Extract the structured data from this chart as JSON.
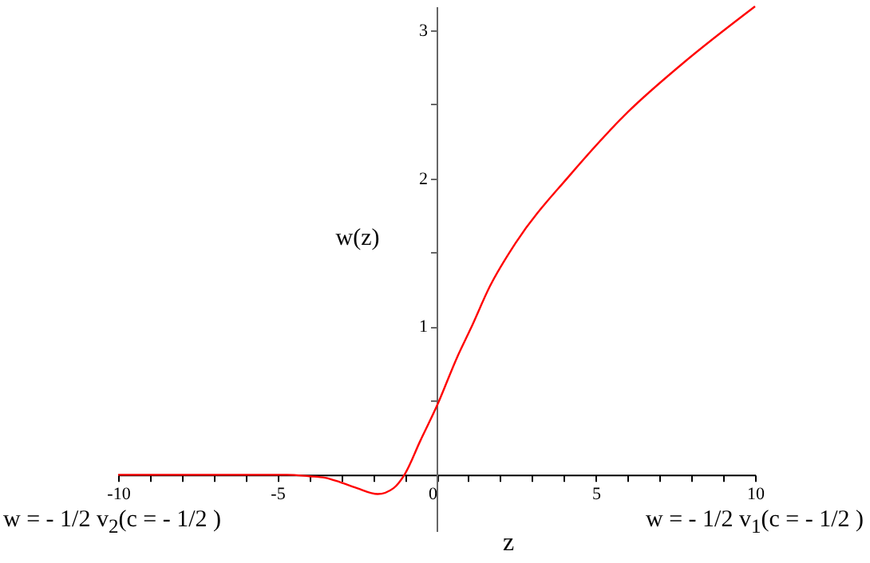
{
  "chart_data": {
    "type": "line",
    "xlabel": "z",
    "ylabel": "w(z)",
    "annotations": [
      "w = - 1/2 v$_{2}$(c = - 1/2 )",
      "w = - 1/2 v$_{1}$(c = - 1/2 )"
    ],
    "x": [
      -10,
      -8,
      -6,
      -4.7,
      -4,
      -3.5,
      -3.03,
      -2.5,
      -1.85,
      -1.35,
      -1.01,
      -0.51,
      0,
      0.66,
      1.08,
      1.67,
      2.5,
      4.18,
      6.02,
      7.7,
      10
    ],
    "series": [
      {
        "color": "#ff0000",
        "values": [
          0,
          0,
          0,
          0,
          -0.01,
          -0.02,
          -0.05,
          -0.09,
          -0.13,
          -0.09,
          0,
          0.23,
          0.46,
          0.8,
          0.99,
          1.27,
          1.57,
          2.02,
          2.45,
          2.77,
          3.16
        ]
      }
    ],
    "xlim": [
      -10,
      10
    ],
    "ylim": [
      -0.38,
      3.16
    ],
    "xticks": [
      -10,
      {
        "value": -9,
        "label": null
      },
      {
        "value": -8,
        "label": null
      },
      {
        "value": -7,
        "label": null
      },
      {
        "value": -6,
        "label": null
      },
      -5,
      {
        "value": -4,
        "label": null
      },
      {
        "value": -3,
        "label": null
      },
      {
        "value": -2,
        "label": null
      },
      {
        "value": -1,
        "label": null
      },
      0,
      {
        "value": 1,
        "label": null
      },
      {
        "value": 2,
        "label": null
      },
      {
        "value": 3,
        "label": null
      },
      {
        "value": 4,
        "label": null
      },
      5,
      {
        "value": 6,
        "label": null
      },
      {
        "value": 7,
        "label": null
      },
      {
        "value": 8,
        "label": null
      },
      {
        "value": 9,
        "label": null
      },
      10
    ],
    "yticks": [
      {
        "value": 0.5,
        "label": null
      },
      1,
      {
        "value": 1.5,
        "label": null
      },
      2,
      {
        "value": 2.5,
        "label": null
      },
      3
    ],
    "grid": false,
    "marker": "none",
    "line_style": "solid"
  }
}
